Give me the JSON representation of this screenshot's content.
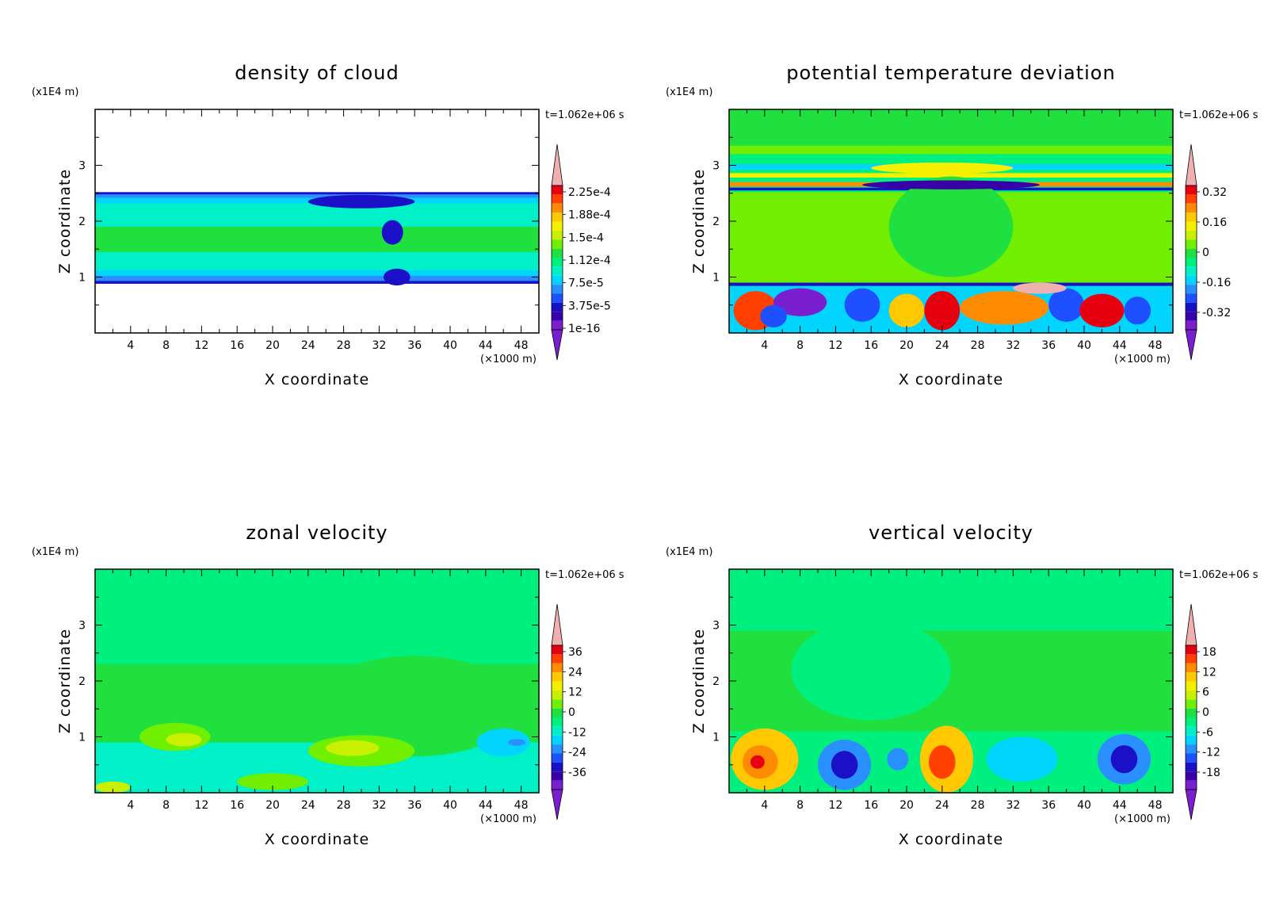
{
  "figure_time_label": "t=1.062e+06 s",
  "colors": {
    "purple": "#7a1fcf",
    "indigo": "#3a00a8",
    "dark-blue": "#1a10c8",
    "blue": "#1e50ff",
    "mid-blue": "#2a90ff",
    "cyan": "#00d4ff",
    "aqua": "#00f0c8",
    "spring-green": "#00f080",
    "green": "#20e040",
    "lime": "#70f000",
    "yellow-green": "#c8f000",
    "yellow": "#f4f000",
    "gold": "#ffc800",
    "orange": "#ff8c00",
    "red-orange": "#ff4000",
    "red": "#e80010",
    "pink": "#f0b0b0"
  },
  "chart_data": [
    {
      "type": "heatmap",
      "title": "density of cloud",
      "xlabel": "X coordinate",
      "ylabel": "Z coordinate",
      "x_unit": "(×1000 m)",
      "y_unit": "(x1E4 m)",
      "xlim": [
        0,
        50
      ],
      "ylim": [
        0,
        4
      ],
      "xticks": [
        "4",
        "8",
        "12",
        "16",
        "20",
        "24",
        "28",
        "32",
        "36",
        "40",
        "44",
        "48"
      ],
      "yticks": [
        "1",
        "2",
        "3"
      ],
      "time_label": "t=1.062e+06 s",
      "colorbar_labels": [
        "2.25e-4",
        "1.88e-4",
        "1.5e-4",
        "1.12e-4",
        "7.5e-5",
        "3.75e-5",
        "1e-16"
      ],
      "background": "#ffffff",
      "bands": [
        {
          "y0": 0.88,
          "y1": 2.52,
          "color": "#1a10c8"
        },
        {
          "y0": 0.93,
          "y1": 2.48,
          "color": "#2a90ff"
        },
        {
          "y0": 1.02,
          "y1": 2.42,
          "color": "#00d4ff"
        },
        {
          "y0": 1.12,
          "y1": 2.32,
          "color": "#00f0c8"
        },
        {
          "y0": 1.45,
          "y1": 1.9,
          "color": "#20e040"
        }
      ],
      "features": [
        {
          "x": 30,
          "z": 2.35,
          "rx": 6,
          "rz": 0.12,
          "color": "#1a10c8"
        },
        {
          "x": 33.5,
          "z": 1.8,
          "rx": 1.2,
          "rz": 0.22,
          "color": "#1a10c8"
        },
        {
          "x": 34,
          "z": 1.0,
          "rx": 1.5,
          "rz": 0.15,
          "color": "#1a10c8"
        }
      ]
    },
    {
      "type": "heatmap",
      "title": "potential temperature deviation",
      "xlabel": "X coordinate",
      "ylabel": "Z coordinate",
      "x_unit": "(×1000 m)",
      "y_unit": "(x1E4 m)",
      "xlim": [
        0,
        50
      ],
      "ylim": [
        0,
        4
      ],
      "xticks": [
        "4",
        "8",
        "12",
        "16",
        "20",
        "24",
        "28",
        "32",
        "36",
        "40",
        "44",
        "48"
      ],
      "yticks": [
        "1",
        "2",
        "3"
      ],
      "time_label": "t=1.062e+06 s",
      "colorbar_labels": [
        "0.32",
        "0.16",
        "0",
        "-0.16",
        "-0.32"
      ],
      "background": "#70f000",
      "bands": [
        {
          "y0": 3.35,
          "y1": 4.0,
          "color": "#20e040"
        },
        {
          "y0": 2.52,
          "y1": 3.2,
          "color": "#00f080"
        },
        {
          "y0": 2.92,
          "y1": 3.02,
          "color": "#00d4ff"
        },
        {
          "y0": 2.78,
          "y1": 2.86,
          "color": "#f4f000"
        },
        {
          "y0": 2.62,
          "y1": 2.7,
          "color": "#ff8c00"
        },
        {
          "y0": 2.55,
          "y1": 2.6,
          "color": "#1a10c8"
        },
        {
          "y0": 0.84,
          "y1": 0.9,
          "color": "#1a10c8"
        },
        {
          "y0": 0.0,
          "y1": 0.84,
          "color": "#00d4ff"
        }
      ],
      "features": [
        {
          "x": 25,
          "z": 1.9,
          "rx": 7,
          "rz": 0.9,
          "color": "#20e040"
        },
        {
          "x": 25,
          "z": 2.65,
          "rx": 10,
          "rz": 0.08,
          "color": "#3a00a8"
        },
        {
          "x": 24,
          "z": 2.95,
          "rx": 8,
          "rz": 0.1,
          "color": "#f4f000"
        },
        {
          "x": 3,
          "z": 0.4,
          "rx": 2.5,
          "rz": 0.35,
          "color": "#ff4000"
        },
        {
          "x": 8,
          "z": 0.55,
          "rx": 3,
          "rz": 0.25,
          "color": "#7a1fcf"
        },
        {
          "x": 5,
          "z": 0.3,
          "rx": 1.5,
          "rz": 0.2,
          "color": "#1e50ff"
        },
        {
          "x": 15,
          "z": 0.5,
          "rx": 2,
          "rz": 0.3,
          "color": "#1e50ff"
        },
        {
          "x": 20,
          "z": 0.4,
          "rx": 2,
          "rz": 0.3,
          "color": "#ffc800"
        },
        {
          "x": 24,
          "z": 0.4,
          "rx": 2,
          "rz": 0.35,
          "color": "#e80010"
        },
        {
          "x": 31,
          "z": 0.45,
          "rx": 5,
          "rz": 0.3,
          "color": "#ff8c00"
        },
        {
          "x": 38,
          "z": 0.5,
          "rx": 2,
          "rz": 0.3,
          "color": "#1e50ff"
        },
        {
          "x": 42,
          "z": 0.4,
          "rx": 2.5,
          "rz": 0.3,
          "color": "#e80010"
        },
        {
          "x": 46,
          "z": 0.4,
          "rx": 1.5,
          "rz": 0.25,
          "color": "#1e50ff"
        },
        {
          "x": 35,
          "z": 0.8,
          "rx": 3,
          "rz": 0.1,
          "color": "#f0b0b0"
        }
      ]
    },
    {
      "type": "heatmap",
      "title": "zonal velocity",
      "xlabel": "X coordinate",
      "ylabel": "Z coordinate",
      "x_unit": "(×1000 m)",
      "y_unit": "(x1E4 m)",
      "xlim": [
        0,
        50
      ],
      "ylim": [
        0,
        4
      ],
      "xticks": [
        "4",
        "8",
        "12",
        "16",
        "20",
        "24",
        "28",
        "32",
        "36",
        "40",
        "44",
        "48"
      ],
      "yticks": [
        "1",
        "2",
        "3"
      ],
      "time_label": "t=1.062e+06 s",
      "colorbar_labels": [
        "36",
        "24",
        "12",
        "0",
        "-12",
        "-24",
        "-36"
      ],
      "background": "#00f080",
      "bands": [
        {
          "y0": 0.0,
          "y1": 2.3,
          "color": "#20e040"
        },
        {
          "y0": 0.0,
          "y1": 0.9,
          "color": "#00f0c8"
        }
      ],
      "features": [
        {
          "x": 36,
          "z": 1.55,
          "rx": 12,
          "rz": 0.9,
          "color": "#20e040"
        },
        {
          "x": 9,
          "z": 1.0,
          "rx": 4,
          "rz": 0.25,
          "color": "#70f000"
        },
        {
          "x": 10,
          "z": 0.95,
          "rx": 2,
          "rz": 0.12,
          "color": "#c8f000"
        },
        {
          "x": 30,
          "z": 0.75,
          "rx": 6,
          "rz": 0.28,
          "color": "#70f000"
        },
        {
          "x": 29,
          "z": 0.8,
          "rx": 3,
          "rz": 0.14,
          "color": "#c8f000"
        },
        {
          "x": 20,
          "z": 0.2,
          "rx": 4,
          "rz": 0.15,
          "color": "#70f000"
        },
        {
          "x": 2,
          "z": 0.1,
          "rx": 2,
          "rz": 0.1,
          "color": "#c8f000"
        },
        {
          "x": 46,
          "z": 0.9,
          "rx": 3,
          "rz": 0.25,
          "color": "#00d4ff"
        },
        {
          "x": 47.5,
          "z": 0.9,
          "rx": 1,
          "rz": 0.06,
          "color": "#2a90ff"
        }
      ]
    },
    {
      "type": "heatmap",
      "title": "vertical velocity",
      "xlabel": "X coordinate",
      "ylabel": "Z coordinate",
      "x_unit": "(×1000 m)",
      "y_unit": "(x1E4 m)",
      "xlim": [
        0,
        50
      ],
      "ylim": [
        0,
        4
      ],
      "xticks": [
        "4",
        "8",
        "12",
        "16",
        "20",
        "24",
        "28",
        "32",
        "36",
        "40",
        "44",
        "48"
      ],
      "yticks": [
        "1",
        "2",
        "3"
      ],
      "time_label": "t=1.062e+06 s",
      "colorbar_labels": [
        "18",
        "12",
        "6",
        "0",
        "-6",
        "-12",
        "-18"
      ],
      "background": "#00f080",
      "bands": [
        {
          "y0": 0.0,
          "y1": 2.9,
          "color": "#20e040"
        },
        {
          "y0": 0.0,
          "y1": 1.1,
          "color": "#00f080"
        }
      ],
      "features": [
        {
          "x": 16,
          "z": 2.2,
          "rx": 9,
          "rz": 0.9,
          "color": "#00f080"
        },
        {
          "x": 4,
          "z": 0.6,
          "rx": 3.8,
          "rz": 0.55,
          "color": "#ffc800"
        },
        {
          "x": 3.5,
          "z": 0.55,
          "rx": 2,
          "rz": 0.3,
          "color": "#ff8c00"
        },
        {
          "x": 3.2,
          "z": 0.55,
          "rx": 0.8,
          "rz": 0.12,
          "color": "#e80010"
        },
        {
          "x": 13,
          "z": 0.5,
          "rx": 3,
          "rz": 0.45,
          "color": "#2a90ff"
        },
        {
          "x": 13,
          "z": 0.5,
          "rx": 1.5,
          "rz": 0.25,
          "color": "#1a10c8"
        },
        {
          "x": 19,
          "z": 0.6,
          "rx": 1.2,
          "rz": 0.2,
          "color": "#2a90ff"
        },
        {
          "x": 24.5,
          "z": 0.6,
          "rx": 3,
          "rz": 0.6,
          "color": "#ffc800"
        },
        {
          "x": 24,
          "z": 0.55,
          "rx": 1.5,
          "rz": 0.3,
          "color": "#ff4000"
        },
        {
          "x": 33,
          "z": 0.6,
          "rx": 4,
          "rz": 0.4,
          "color": "#00d4ff"
        },
        {
          "x": 44.5,
          "z": 0.6,
          "rx": 3,
          "rz": 0.45,
          "color": "#2a90ff"
        },
        {
          "x": 44.5,
          "z": 0.6,
          "rx": 1.5,
          "rz": 0.25,
          "color": "#1a10c8"
        }
      ]
    }
  ]
}
